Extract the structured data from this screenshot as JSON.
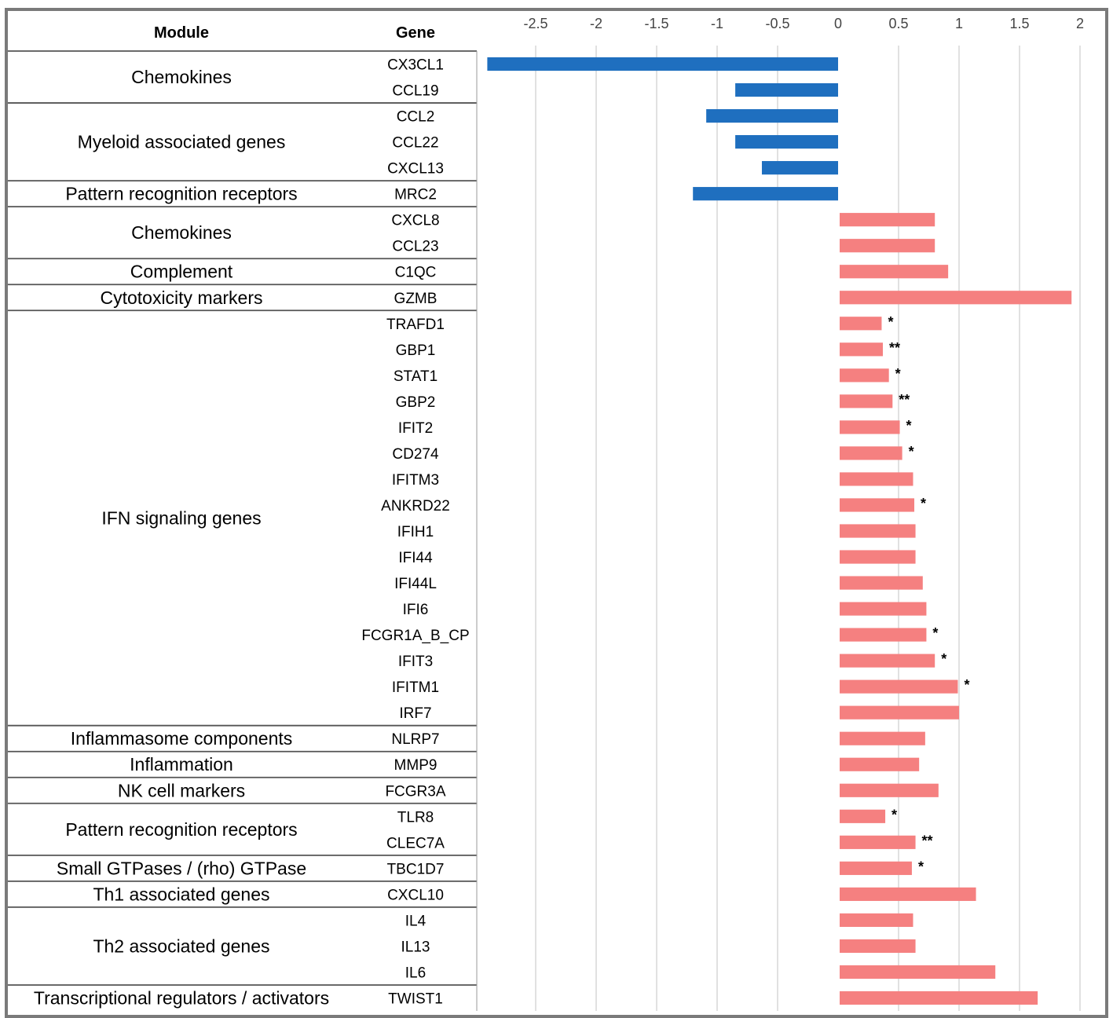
{
  "chart_data": {
    "type": "bar",
    "orientation": "horizontal",
    "table_headers": {
      "module": "Module",
      "gene": "Gene"
    },
    "xlim": [
      -2.9,
      2.0
    ],
    "ticks": [
      "-2.5",
      "-2",
      "-1.5",
      "-1",
      "-0.5",
      "0",
      "0.5",
      "1",
      "1.5",
      "2"
    ],
    "tick_values": [
      -2.5,
      -2,
      -1.5,
      -1,
      -0.5,
      0,
      0.5,
      1,
      1.5,
      2
    ],
    "colors": {
      "negative": "#1f6fbf",
      "positive": "#f58080",
      "grid": "#d4d4d4",
      "rule": "#555555"
    },
    "modules": [
      {
        "name": "Chemokines",
        "genes": [
          {
            "gene": "CX3CL1",
            "value": -2.9,
            "sig": ""
          },
          {
            "gene": "CCL19",
            "value": -0.85,
            "sig": ""
          }
        ]
      },
      {
        "name": "Myeloid associated genes",
        "genes": [
          {
            "gene": "CCL2",
            "value": -1.09,
            "sig": ""
          },
          {
            "gene": "CCL22",
            "value": -0.85,
            "sig": ""
          },
          {
            "gene": "CXCL13",
            "value": -0.63,
            "sig": ""
          }
        ]
      },
      {
        "name": "Pattern recognition receptors",
        "genes": [
          {
            "gene": "MRC2",
            "value": -1.2,
            "sig": ""
          }
        ]
      },
      {
        "name": "Chemokines",
        "genes": [
          {
            "gene": "CXCL8",
            "value": 0.8,
            "sig": ""
          },
          {
            "gene": "CCL23",
            "value": 0.8,
            "sig": ""
          }
        ]
      },
      {
        "name": "Complement",
        "genes": [
          {
            "gene": "C1QC",
            "value": 0.91,
            "sig": ""
          }
        ]
      },
      {
        "name": "Cytotoxicity markers",
        "genes": [
          {
            "gene": "GZMB",
            "value": 1.93,
            "sig": ""
          }
        ]
      },
      {
        "name": "IFN signaling genes",
        "genes": [
          {
            "gene": "TRAFD1",
            "value": 0.36,
            "sig": "*"
          },
          {
            "gene": "GBP1",
            "value": 0.37,
            "sig": "**"
          },
          {
            "gene": "STAT1",
            "value": 0.42,
            "sig": "*"
          },
          {
            "gene": "GBP2",
            "value": 0.45,
            "sig": "**"
          },
          {
            "gene": "IFIT2",
            "value": 0.51,
            "sig": "*"
          },
          {
            "gene": "CD274",
            "value": 0.53,
            "sig": "*"
          },
          {
            "gene": "IFITM3",
            "value": 0.62,
            "sig": ""
          },
          {
            "gene": "ANKRD22",
            "value": 0.63,
            "sig": "*"
          },
          {
            "gene": "IFIH1",
            "value": 0.64,
            "sig": ""
          },
          {
            "gene": "IFI44",
            "value": 0.64,
            "sig": ""
          },
          {
            "gene": "IFI44L",
            "value": 0.7,
            "sig": ""
          },
          {
            "gene": "IFI6",
            "value": 0.73,
            "sig": ""
          },
          {
            "gene": "FCGR1A_B_CP",
            "value": 0.73,
            "sig": "*"
          },
          {
            "gene": "IFIT3",
            "value": 0.8,
            "sig": "*"
          },
          {
            "gene": "IFITM1",
            "value": 0.99,
            "sig": "*"
          },
          {
            "gene": "IRF7",
            "value": 1.0,
            "sig": ""
          }
        ]
      },
      {
        "name": "Inflammasome components",
        "genes": [
          {
            "gene": "NLRP7",
            "value": 0.72,
            "sig": ""
          }
        ]
      },
      {
        "name": "Inflammation",
        "genes": [
          {
            "gene": "MMP9",
            "value": 0.67,
            "sig": ""
          }
        ]
      },
      {
        "name": "NK cell markers",
        "genes": [
          {
            "gene": "FCGR3A",
            "value": 0.83,
            "sig": ""
          }
        ]
      },
      {
        "name": "Pattern recognition receptors",
        "genes": [
          {
            "gene": "TLR8",
            "value": 0.39,
            "sig": "*"
          },
          {
            "gene": "CLEC7A",
            "value": 0.64,
            "sig": "**"
          }
        ]
      },
      {
        "name": "Small GTPases / (rho) GTPase",
        "genes": [
          {
            "gene": "TBC1D7",
            "value": 0.61,
            "sig": "*"
          }
        ]
      },
      {
        "name": "Th1 associated genes",
        "genes": [
          {
            "gene": "CXCL10",
            "value": 1.14,
            "sig": ""
          }
        ]
      },
      {
        "name": "Th2 associated genes",
        "genes": [
          {
            "gene": "IL4",
            "value": 0.62,
            "sig": ""
          },
          {
            "gene": "IL13",
            "value": 0.64,
            "sig": ""
          },
          {
            "gene": "IL6",
            "value": 1.3,
            "sig": ""
          }
        ]
      },
      {
        "name": "Transcriptional regulators / activators",
        "genes": [
          {
            "gene": "TWIST1",
            "value": 1.65,
            "sig": ""
          }
        ]
      }
    ]
  }
}
